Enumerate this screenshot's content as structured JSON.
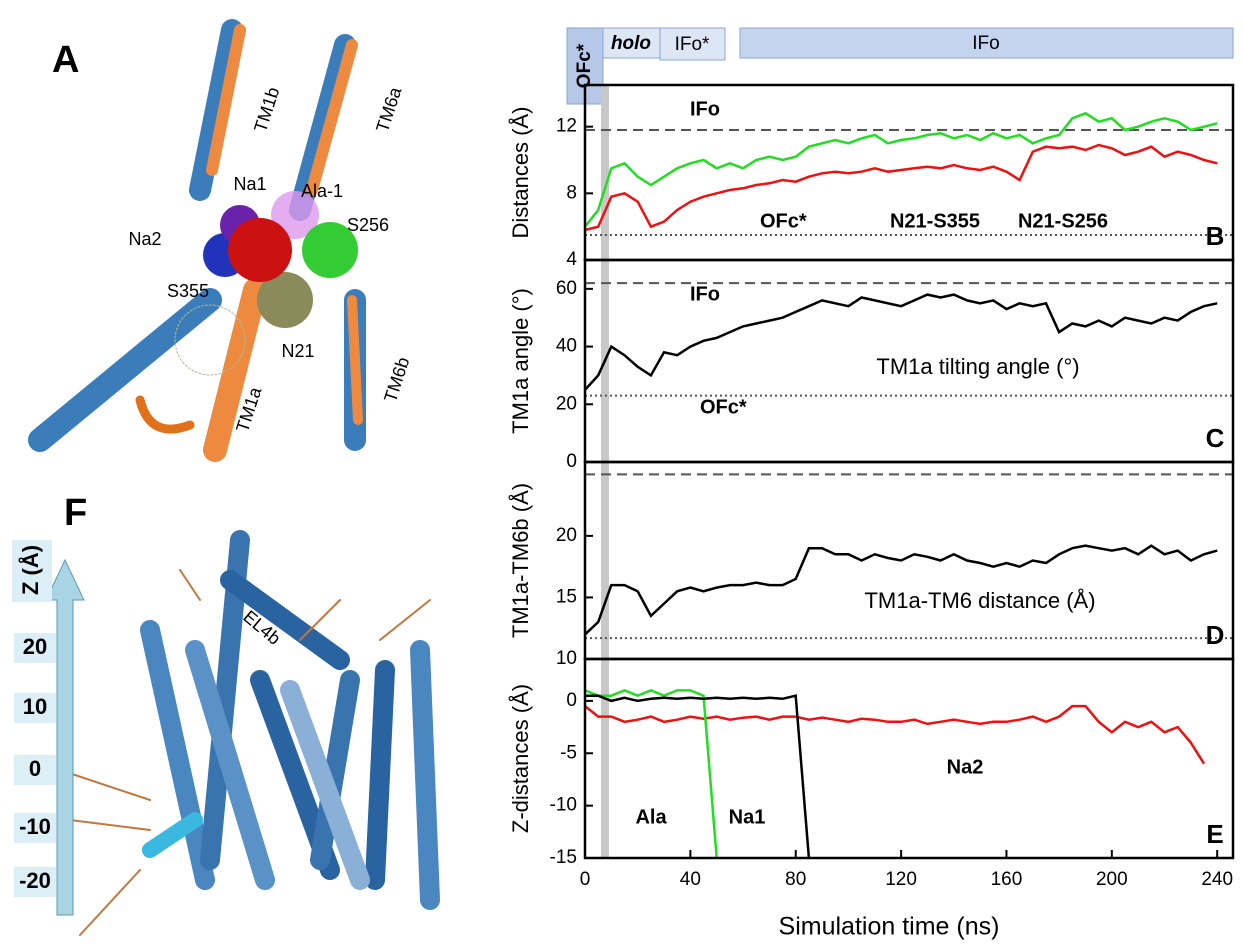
{
  "panel_a": {
    "label": "A",
    "texts": [
      "TM1b",
      "TM6a",
      "Na1",
      "Ala-1",
      "S256",
      "Na2",
      "S355",
      "N21",
      "TM1a",
      "TM6b"
    ]
  },
  "panel_f": {
    "label": "F",
    "texts": [
      "EL4b"
    ],
    "z_label": "Z (Å)",
    "z_ticks": [
      20,
      10,
      0,
      -10,
      -20
    ]
  },
  "phases": [
    "OFc*",
    "holo",
    "IFo*",
    "IFo"
  ],
  "chart_data": [
    {
      "type": "line",
      "panel_label": "B",
      "y_label": "Distances (Å)",
      "xlim": [
        0,
        246
      ],
      "ylim": [
        4,
        14.5
      ],
      "yticks": [
        4,
        8,
        12
      ],
      "x": [
        0,
        5,
        10,
        15,
        20,
        25,
        30,
        35,
        40,
        45,
        50,
        55,
        60,
        65,
        70,
        75,
        80,
        85,
        90,
        95,
        100,
        105,
        110,
        115,
        120,
        125,
        130,
        135,
        140,
        145,
        150,
        155,
        160,
        165,
        170,
        175,
        180,
        185,
        190,
        195,
        200,
        205,
        210,
        215,
        220,
        225,
        230,
        235,
        240
      ],
      "series": [
        {
          "name": "N21-S355",
          "color": "#ee1111",
          "values": [
            5.8,
            6,
            7.8,
            8,
            7.5,
            6,
            6.3,
            7,
            7.5,
            7.8,
            8,
            8.2,
            8.3,
            8.5,
            8.6,
            8.8,
            8.7,
            9,
            9.2,
            9.3,
            9.2,
            9.3,
            9.5,
            9.3,
            9.4,
            9.5,
            9.6,
            9.5,
            9.7,
            9.5,
            9.4,
            9.6,
            9.3,
            8.8,
            10.5,
            10.8,
            10.7,
            10.8,
            10.6,
            10.9,
            10.7,
            10.3,
            10.5,
            10.8,
            10.2,
            10.5,
            10.3,
            10,
            9.8
          ]
        },
        {
          "name": "N21-S256",
          "color": "#22dd22",
          "values": [
            6,
            7,
            9.5,
            9.8,
            9,
            8.5,
            9,
            9.5,
            9.8,
            10,
            9.5,
            9.8,
            9.5,
            10,
            10.2,
            10,
            10.2,
            10.8,
            11,
            11.2,
            11,
            11.3,
            11.5,
            11,
            11.2,
            11.3,
            11.5,
            11.6,
            11.3,
            11.5,
            11.2,
            11.6,
            11.3,
            11.5,
            11,
            11.3,
            11.5,
            12.5,
            12.8,
            12.3,
            12.5,
            11.8,
            12,
            12.3,
            12.5,
            12.3,
            11.8,
            12,
            12.2
          ]
        }
      ],
      "ref_lines": [
        {
          "value": 11.8,
          "style": "dashed",
          "label": "IFo"
        },
        {
          "value": 5.5,
          "style": "dotted",
          "label": "OFc*"
        }
      ]
    },
    {
      "type": "line",
      "panel_label": "C",
      "y_label": "TM1a angle (°)",
      "annotation": "TM1a tilting angle (°)",
      "xlim": [
        0,
        246
      ],
      "ylim": [
        0,
        70
      ],
      "yticks": [
        0,
        20,
        40,
        60
      ],
      "x": [
        0,
        5,
        10,
        15,
        20,
        25,
        30,
        35,
        40,
        45,
        50,
        55,
        60,
        65,
        70,
        75,
        80,
        85,
        90,
        95,
        100,
        105,
        110,
        115,
        120,
        125,
        130,
        135,
        140,
        145,
        150,
        155,
        160,
        165,
        170,
        175,
        180,
        185,
        190,
        195,
        200,
        205,
        210,
        215,
        220,
        225,
        230,
        235,
        240
      ],
      "series": [
        {
          "color": "#000000",
          "values": [
            25,
            30,
            40,
            37,
            33,
            30,
            38,
            37,
            40,
            42,
            43,
            45,
            47,
            48,
            49,
            50,
            52,
            54,
            56,
            55,
            54,
            57,
            56,
            55,
            54,
            56,
            58,
            57,
            58,
            56,
            55,
            56,
            53,
            55,
            54,
            55,
            45,
            48,
            47,
            49,
            47,
            50,
            49,
            48,
            50,
            49,
            52,
            54,
            55
          ]
        }
      ],
      "ref_lines": [
        {
          "value": 62,
          "style": "dashed",
          "label": "IFo"
        },
        {
          "value": 23,
          "style": "dotted",
          "label": "OFc*"
        }
      ]
    },
    {
      "type": "line",
      "panel_label": "D",
      "y_label": "TM1a-TM6b (Å)",
      "annotation": "TM1a-TM6 distance (Å)",
      "xlim": [
        0,
        246
      ],
      "ylim": [
        10,
        26
      ],
      "yticks": [
        10,
        15,
        20
      ],
      "x": [
        0,
        5,
        10,
        15,
        20,
        25,
        30,
        35,
        40,
        45,
        50,
        55,
        60,
        65,
        70,
        75,
        80,
        85,
        90,
        95,
        100,
        105,
        110,
        115,
        120,
        125,
        130,
        135,
        140,
        145,
        150,
        155,
        160,
        165,
        170,
        175,
        180,
        185,
        190,
        195,
        200,
        205,
        210,
        215,
        220,
        225,
        230,
        235,
        240
      ],
      "series": [
        {
          "color": "#000000",
          "values": [
            12,
            13,
            16,
            16,
            15.5,
            13.5,
            14.5,
            15.5,
            15.8,
            15.5,
            15.8,
            16,
            16,
            16.2,
            16,
            16,
            16.5,
            19,
            19,
            18.5,
            18.5,
            18,
            18.5,
            18.2,
            18,
            18.5,
            18.3,
            18,
            18.5,
            18,
            17.8,
            17.5,
            17.8,
            17.5,
            18,
            17.8,
            18.5,
            19,
            19.2,
            19,
            18.8,
            19,
            18.5,
            19.2,
            18.5,
            18.8,
            18,
            18.5,
            18.8
          ]
        }
      ],
      "ref_lines": [
        {
          "value": 25,
          "style": "dashed"
        },
        {
          "value": 11.7,
          "style": "dotted"
        }
      ]
    },
    {
      "type": "line",
      "panel_label": "E",
      "y_label": "Z-distances (Å)",
      "x_label": "Simulation time (ns)",
      "xlim": [
        0,
        246
      ],
      "ylim": [
        -15,
        4
      ],
      "yticks": [
        0,
        -5,
        -10,
        -15
      ],
      "xticks": [
        0,
        40,
        80,
        120,
        160,
        200,
        240
      ],
      "x": [
        0,
        5,
        10,
        15,
        20,
        25,
        30,
        35,
        40,
        45,
        50,
        55,
        60,
        65,
        70,
        75,
        80,
        85,
        90,
        95,
        100,
        105,
        110,
        115,
        120,
        125,
        130,
        135,
        140,
        145,
        150,
        155,
        160,
        165,
        170,
        175,
        180,
        185,
        190,
        195,
        200,
        205,
        210,
        215,
        220,
        225,
        230,
        235,
        240
      ],
      "series": [
        {
          "name": "Na2",
          "color": "#ee1111",
          "values": [
            -0.5,
            -1.5,
            -1.5,
            -2,
            -1.8,
            -1.5,
            -2,
            -1.8,
            -1.5,
            -1.7,
            -1.5,
            -1.8,
            -1.6,
            -1.5,
            -1.8,
            -1.5,
            -1.5,
            -1.8,
            -1.6,
            -1.8,
            -2,
            -1.7,
            -1.8,
            -2,
            -2,
            -1.8,
            -2.2,
            -2,
            -1.8,
            -2,
            -2.2,
            -2,
            -2,
            -1.8,
            -1.5,
            -2,
            -1.5,
            -0.5,
            -0.5,
            -2,
            -3,
            -2,
            -2.5,
            -2,
            -3,
            -2.5,
            -4,
            -6,
            null
          ]
        },
        {
          "name": "Ala",
          "color": "#22dd22",
          "values": [
            1,
            0.5,
            0.5,
            1,
            0.5,
            1,
            0.5,
            1,
            1,
            0.5,
            -15,
            null,
            null,
            null,
            null,
            null,
            null,
            null,
            null,
            null,
            null,
            null,
            null,
            null,
            null,
            null,
            null,
            null,
            null,
            null,
            null,
            null,
            null,
            null,
            null,
            null,
            null,
            null,
            null,
            null,
            null,
            null,
            null,
            null,
            null,
            null,
            null,
            null,
            null
          ]
        },
        {
          "name": "Na1",
          "color": "#000000",
          "values": [
            0.5,
            0.5,
            0,
            0.3,
            0,
            0.2,
            0.3,
            0.2,
            0.3,
            0.2,
            0.3,
            0.2,
            0.3,
            0.2,
            0.3,
            0.2,
            0.5,
            -15,
            null,
            null,
            null,
            null,
            null,
            null,
            null,
            null,
            null,
            null,
            null,
            null,
            null,
            null,
            null,
            null,
            null,
            null,
            null,
            null,
            null,
            null,
            null,
            null,
            null,
            null,
            null,
            null,
            null,
            null,
            null
          ]
        }
      ]
    }
  ]
}
